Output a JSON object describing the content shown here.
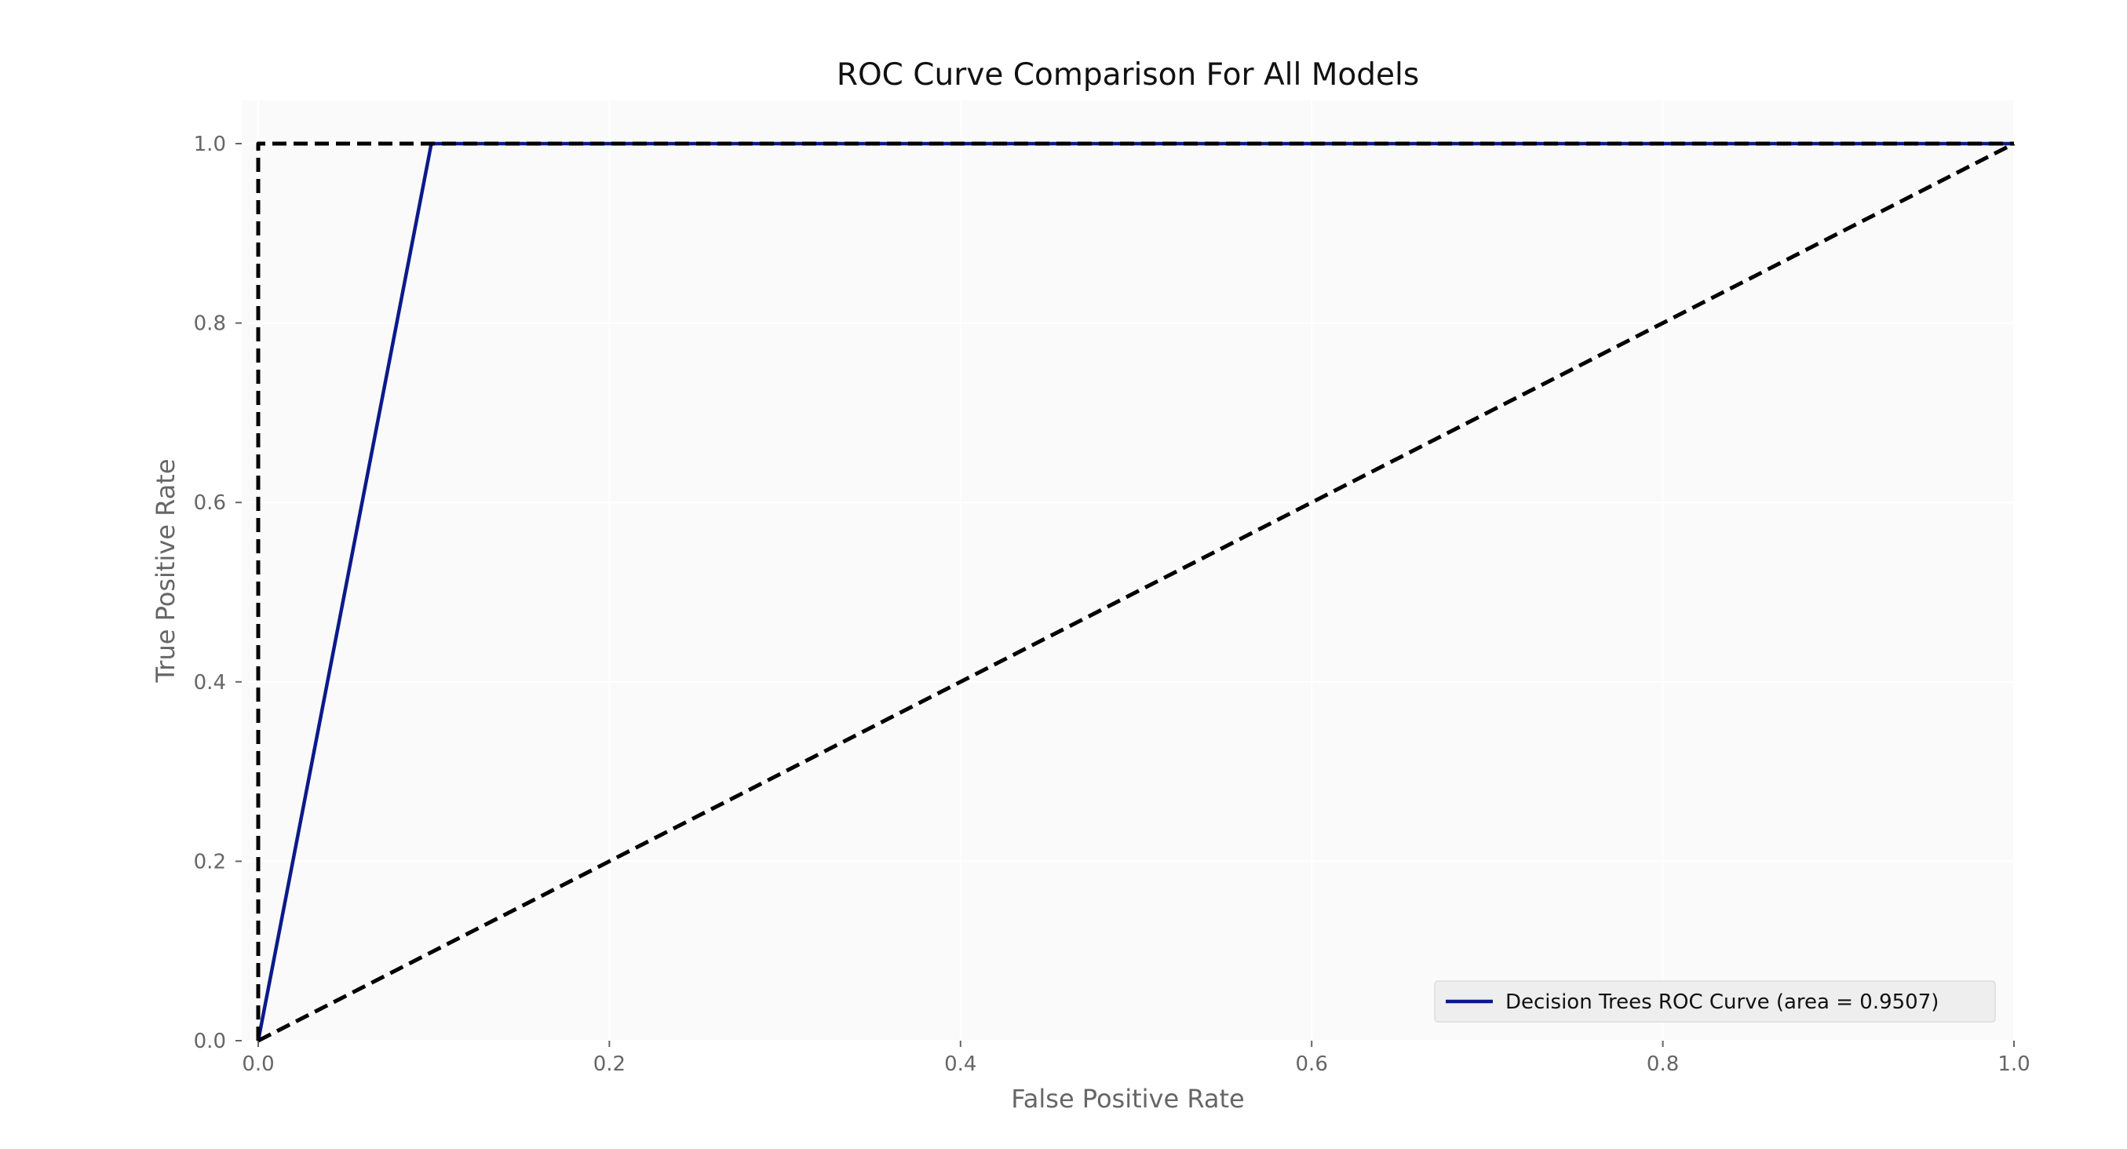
{
  "chart_data": {
    "type": "line",
    "title": "ROC Curve Comparison For All Models",
    "xlabel": "False Positive Rate",
    "ylabel": "True Positive Rate",
    "xlim": [
      0.0,
      1.0
    ],
    "ylim": [
      0.0,
      1.0
    ],
    "x_ticks": [
      "0.0",
      "0.2",
      "0.4",
      "0.6",
      "0.8",
      "1.0"
    ],
    "y_ticks": [
      "0.0",
      "0.2",
      "0.4",
      "0.6",
      "0.8",
      "1.0"
    ],
    "grid": true,
    "legend_position": "bottom-right",
    "series": [
      {
        "name": "Decision Trees ROC Curve (area = 0.9507)",
        "x": [
          0.0,
          0.0986,
          1.0
        ],
        "y": [
          0.0,
          1.0,
          1.0
        ],
        "color": "#0b1a8a",
        "style": "solid"
      },
      {
        "x": [
          0.0,
          1.0
        ],
        "y": [
          0.0,
          1.0
        ],
        "color": "#000000",
        "style": "dashed"
      },
      {
        "x": [
          0.0,
          0.0,
          1.0
        ],
        "y": [
          0.0,
          1.0,
          1.0
        ],
        "color": "#000000",
        "style": "dashed"
      }
    ]
  }
}
